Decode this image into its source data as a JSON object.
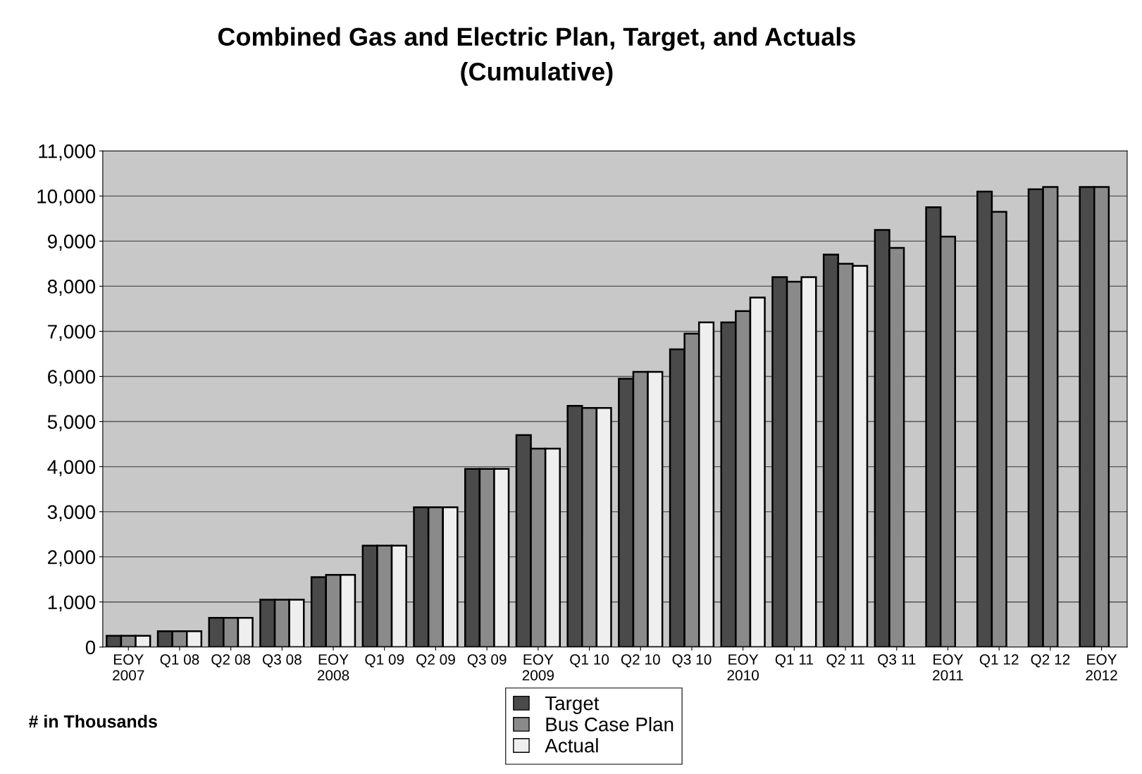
{
  "chart_data": {
    "type": "bar",
    "title": "Combined Gas and Electric Plan, Target, and Actuals\n(Cumulative)",
    "categories": [
      "EOY\n2007",
      "Q1 08",
      "Q2 08",
      "Q3 08",
      "EOY\n2008",
      "Q1 09",
      "Q2 09",
      "Q3 09",
      "EOY\n2009",
      "Q1 10",
      "Q2 10",
      "Q3 10",
      "EOY\n2010",
      "Q1 11",
      "Q2 11",
      "Q3 11",
      "EOY\n2011",
      "Q1 12",
      "Q2 12",
      "EOY\n2012"
    ],
    "series": [
      {
        "name": "Target",
        "color": "#4a4a4a",
        "values": [
          250,
          350,
          650,
          1050,
          1550,
          2250,
          3100,
          3950,
          4700,
          5350,
          5950,
          6600,
          7200,
          8200,
          8700,
          9250,
          9750,
          10100,
          10150,
          10200
        ]
      },
      {
        "name": "Bus Case Plan",
        "color": "#8a8a8a",
        "values": [
          250,
          350,
          650,
          1050,
          1600,
          2250,
          3100,
          3950,
          4400,
          5300,
          6100,
          6950,
          7450,
          8100,
          8500,
          8850,
          9100,
          9650,
          10200,
          10200
        ]
      },
      {
        "name": "Actual",
        "color": "#efefef",
        "values": [
          250,
          350,
          650,
          1050,
          1600,
          2250,
          3100,
          3950,
          4400,
          5300,
          6100,
          7200,
          7750,
          8200,
          8450,
          null,
          null,
          null,
          null,
          null
        ]
      }
    ],
    "ylim": [
      0,
      11000
    ],
    "yticks": [
      0,
      {
        "value": 1000,
        "label": "1,000"
      },
      {
        "value": 2000,
        "label": "2,000"
      },
      {
        "value": 3000,
        "label": "3,000"
      },
      {
        "value": 4000,
        "label": "4,000"
      },
      {
        "value": 5000,
        "label": "5,000"
      },
      {
        "value": 6000,
        "label": "6,000"
      },
      {
        "value": 7000,
        "label": "7,000"
      },
      {
        "value": 8000,
        "label": "8,000"
      },
      {
        "value": 9000,
        "label": "9,000"
      },
      {
        "value": 10000,
        "label": "10,000"
      },
      {
        "value": 11000,
        "label": "11,000"
      }
    ],
    "grid": "y",
    "legend": "bottom",
    "annotations": [
      "# in Thousands"
    ]
  }
}
